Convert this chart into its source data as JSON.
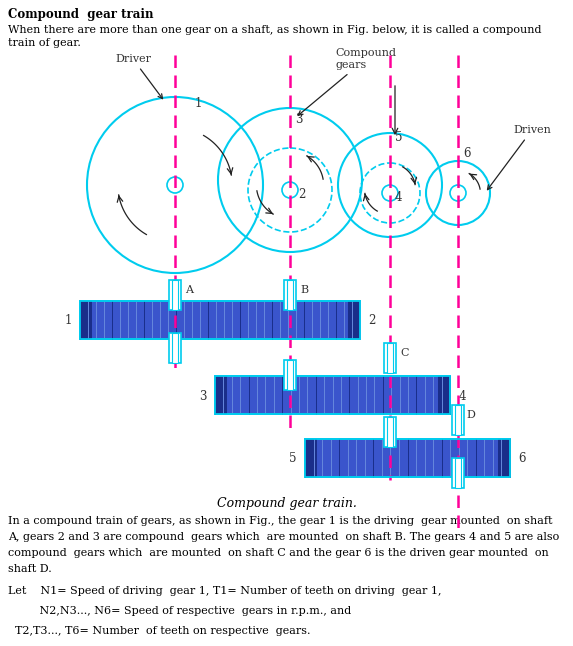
{
  "title": "Compound  gear train",
  "intro_text1": "When there are more than one gear on a shaft, as shown in Fig. below, it is called a compound",
  "intro_text2": "train of gear.",
  "caption": "Compound gear train.",
  "para1_l1": "In a compound train of gears, as shown in Fig., the gear 1 is the driving  gear mounted  on shaft",
  "para1_l2": "A, gears 2 and 3 are compound  gears which  are mounted  on shaft B. The gears 4 and 5 are also",
  "para1_l3": "compound  gears which  are mounted  on shaft C and the gear 6 is the driven gear mounted  on",
  "para1_l4": "shaft D.",
  "para2": "Let    N1= Speed of driving  gear 1, T1= Number of teeth on driving  gear 1,",
  "para3": "         N2,N3..., N6= Speed of respective  gears in r.p.m., and",
  "para4": "  T2,T3..., T6= Number  of teeth on respective  gears.",
  "bg_color": "#ffffff",
  "cyan": "#00ccee",
  "magenta": "#ff0099",
  "dark_blue": "#1a2e8a",
  "mid_blue": "#3a55cc",
  "light_blue_stripe": "#7799ee",
  "arrow_color": "#222222"
}
